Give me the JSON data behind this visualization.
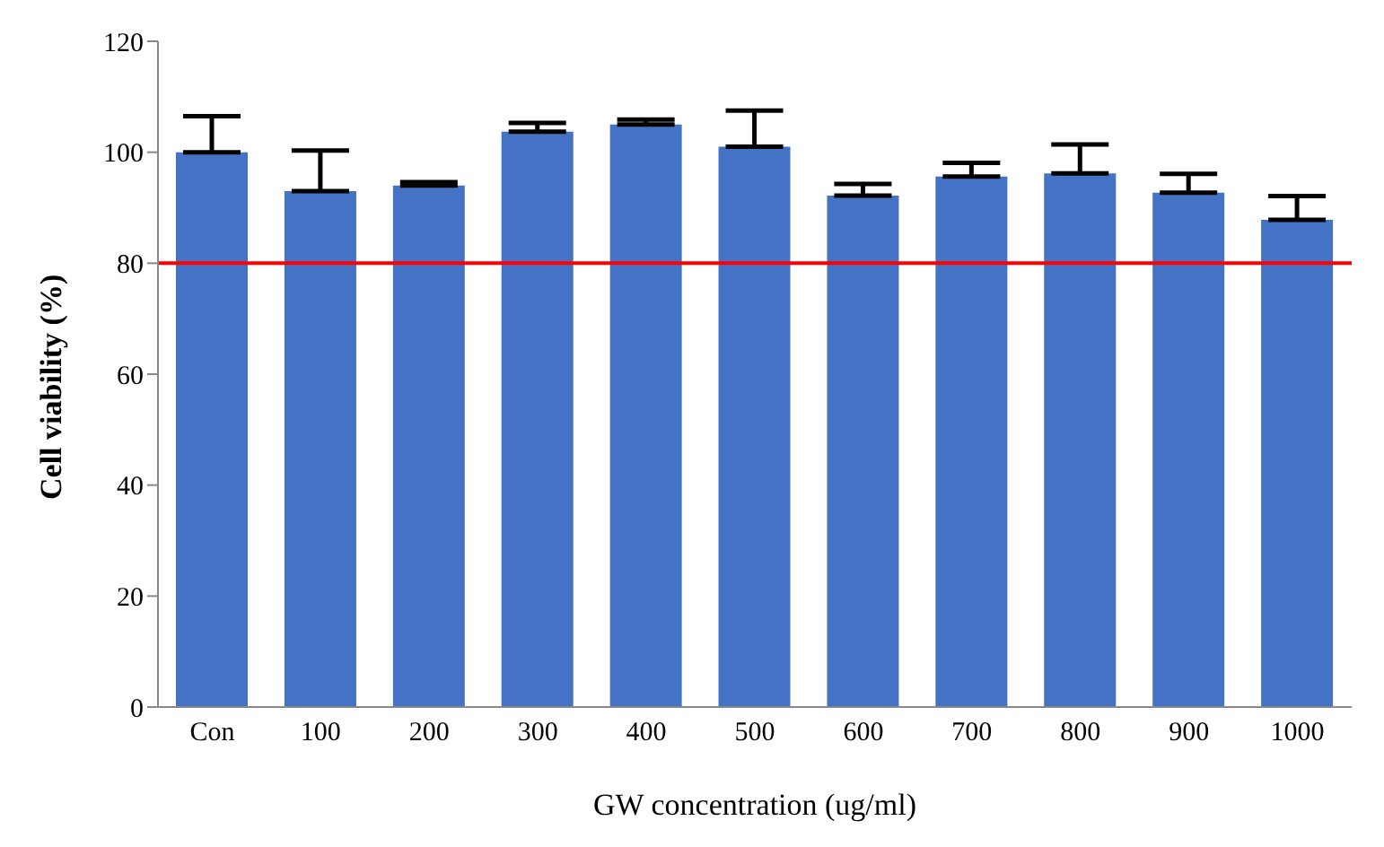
{
  "chart_data": {
    "type": "bar",
    "xlabel": "GW concentration (ug/ml)",
    "ylabel": "Cell viability  (%)",
    "categories": [
      "Con",
      "100",
      "200",
      "300",
      "400",
      "500",
      "600",
      "700",
      "800",
      "900",
      "1000"
    ],
    "values": [
      100,
      93,
      94,
      103.7,
      105,
      101,
      92.2,
      95.6,
      96.2,
      92.7,
      87.8
    ],
    "errors": [
      [
        100,
        106.5
      ],
      [
        93,
        100.3
      ],
      [
        94,
        94.6
      ],
      [
        103.7,
        105.3
      ],
      [
        105,
        105.9
      ],
      [
        101,
        107.5
      ],
      [
        92.2,
        94.3
      ],
      [
        95.6,
        98.1
      ],
      [
        96.2,
        101.4
      ],
      [
        92.7,
        96.1
      ],
      [
        87.8,
        92.1
      ]
    ],
    "color": "#4472c4",
    "ylim": [
      0,
      120
    ],
    "yticks": [
      0,
      20,
      40,
      60,
      80,
      100,
      120
    ],
    "grid": false,
    "legend": false,
    "ref_lines": [
      {
        "axis": "y",
        "value": 80,
        "color": "#ff0000"
      }
    ]
  }
}
